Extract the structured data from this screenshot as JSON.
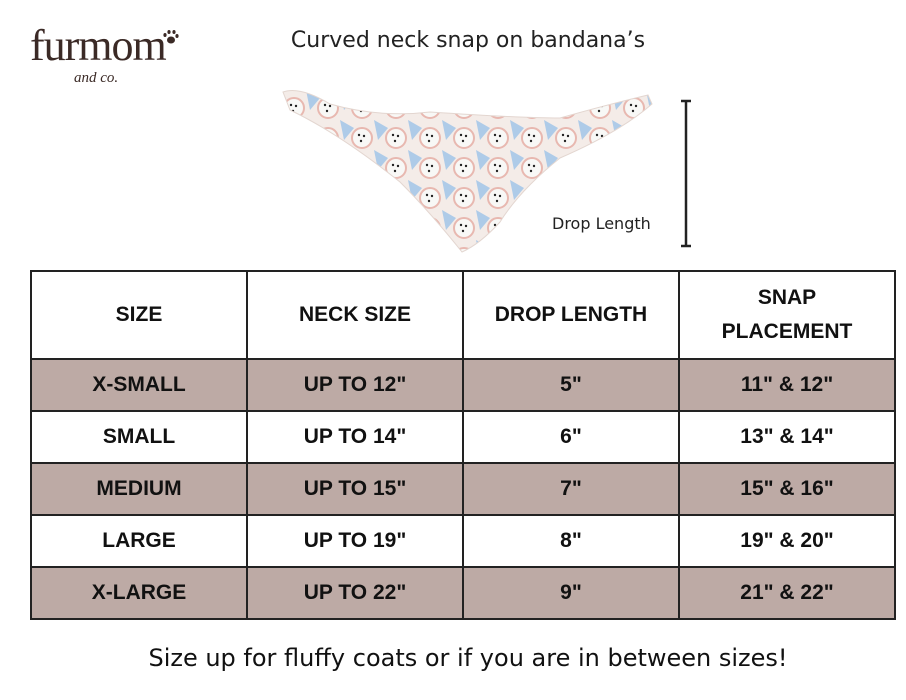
{
  "logo": {
    "name": "furmom",
    "sub": "and co."
  },
  "title": "Curved neck snap on bandana’s",
  "drop_label": "Drop Length",
  "table": {
    "header": [
      "SIZE",
      "NECK SIZE",
      "DROP LENGTH",
      "SNAP PLACEMENT"
    ],
    "rows": [
      [
        "X-SMALL",
        "UP TO 12\"",
        "5\"",
        "11\" & 12\""
      ],
      [
        "SMALL",
        "UP TO 14\"",
        "6\"",
        "13\" & 14\""
      ],
      [
        "MEDIUM",
        "UP TO 15\"",
        "7\"",
        "15\" & 16\""
      ],
      [
        "LARGE",
        "UP TO 19\"",
        "8\"",
        "19\" & 20\""
      ],
      [
        "X-LARGE",
        "UP TO 22\"",
        "9\"",
        "21\" & 22\""
      ]
    ]
  },
  "footer": "Size up for fluffy coats or if you are in between sizes!"
}
